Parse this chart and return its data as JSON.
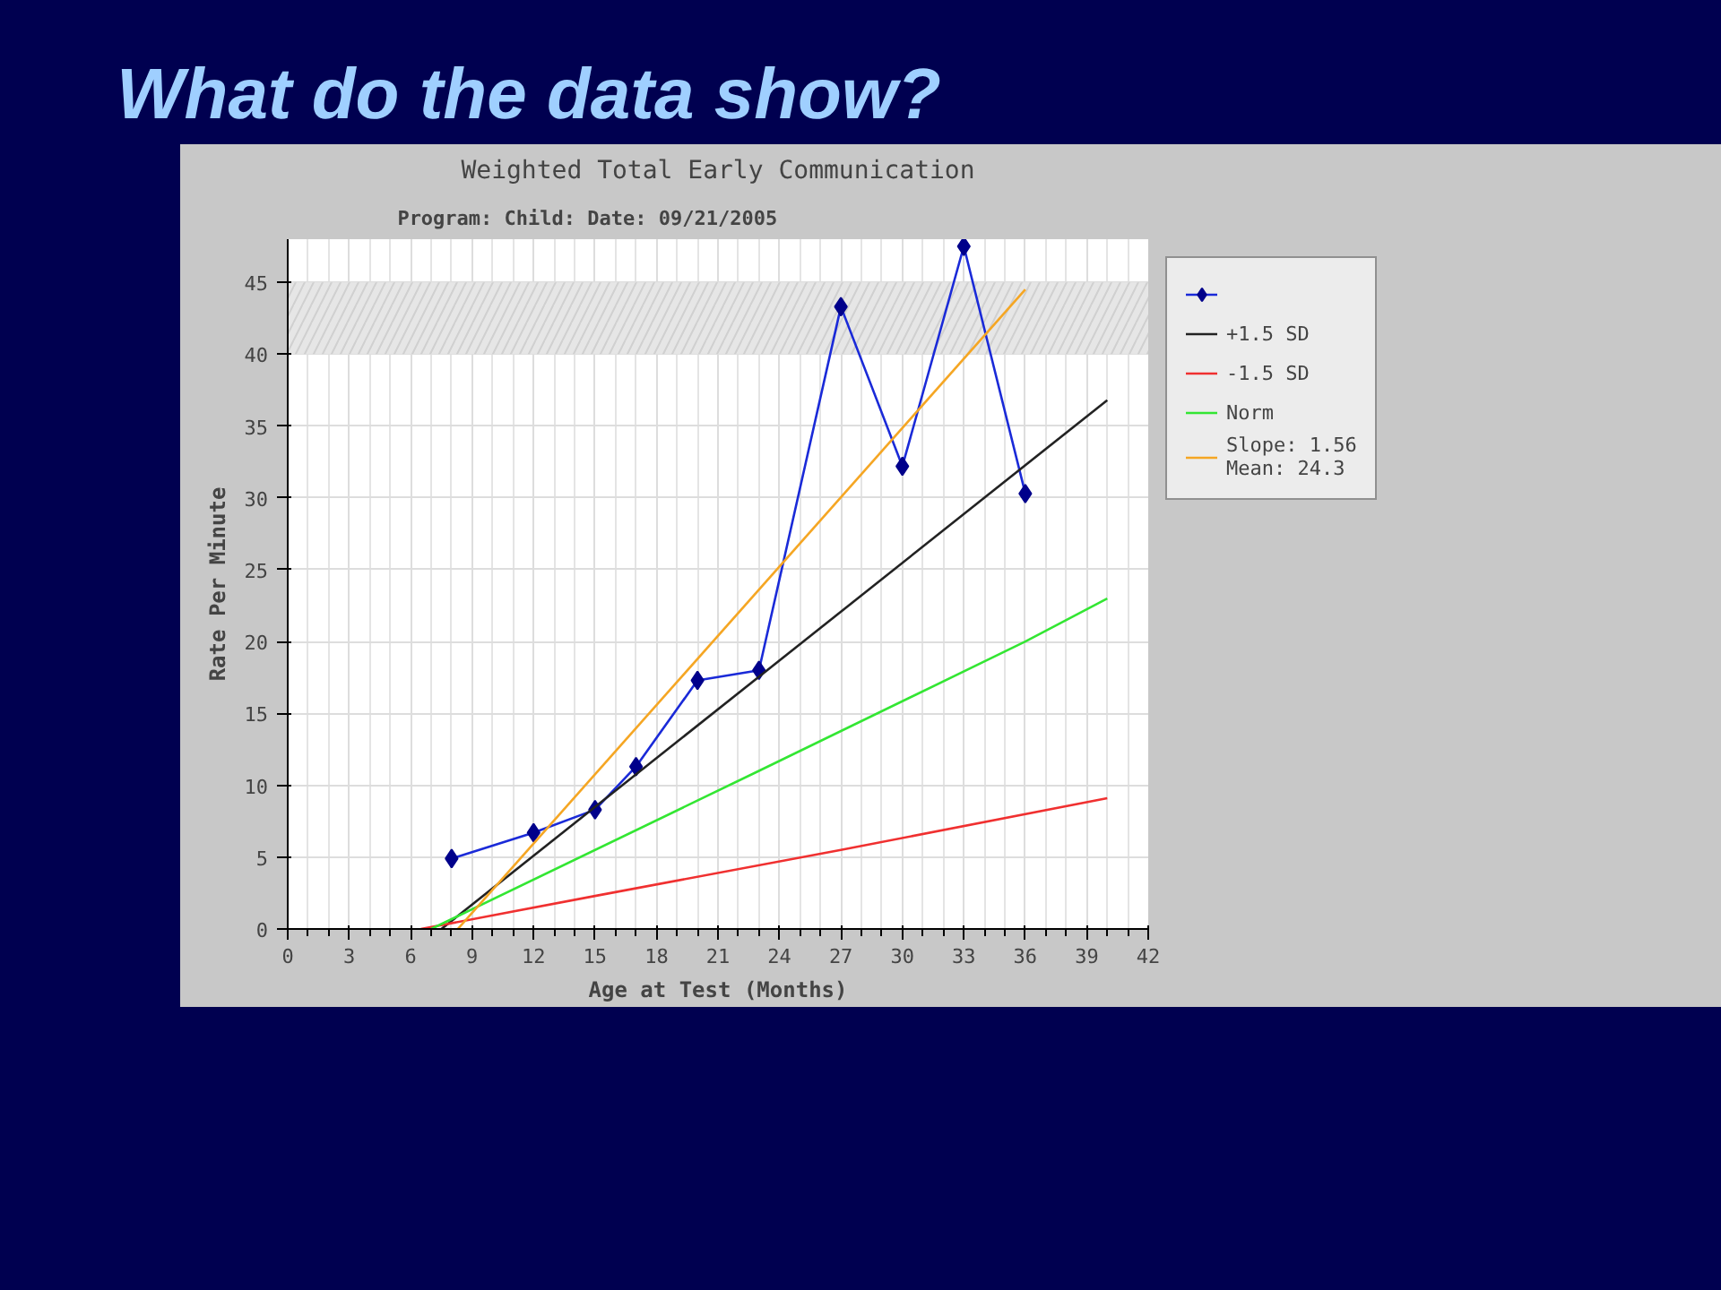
{
  "chart_data": {
    "type": "line",
    "title": "Weighted Total Early Communication",
    "subtitle": "Program:     Child:                   Date: 09/21/2005",
    "annotations": [
      "What do the data show?"
    ],
    "xlabel": "Age at Test (Months)",
    "ylabel": "Rate Per Minute",
    "xlim": [
      0,
      42
    ],
    "xticks": [
      0,
      3,
      6,
      9,
      12,
      15,
      18,
      21,
      24,
      27,
      30,
      33,
      36,
      39,
      42
    ],
    "ylim": [
      0,
      48
    ],
    "yticks": [
      0,
      5,
      10,
      15,
      20,
      25,
      30,
      35,
      40,
      45
    ],
    "grid": true,
    "legend": "right",
    "line_style": "solid",
    "bands": [
      {
        "axis": "y",
        "from": 40,
        "to": 45,
        "color": "#e6e6e6"
      }
    ],
    "series": [
      {
        "color": "#1a2ad8",
        "marker": "diamond",
        "x": [
          8,
          12,
          15,
          17,
          20,
          23,
          27,
          30,
          33,
          36
        ],
        "values": [
          4.9,
          6.7,
          8.3,
          11.3,
          17.3,
          18,
          43.3,
          32.2,
          47.5,
          30.3
        ]
      },
      {
        "name": "+1.5 SD",
        "color": "#222222",
        "marker": "none",
        "x": [
          7.5,
          40
        ],
        "values": [
          0,
          36.8
        ]
      },
      {
        "name": "-1.5 SD",
        "color": "#f03030",
        "marker": "none",
        "x": [
          6.5,
          15,
          27,
          40
        ],
        "values": [
          0,
          2.3,
          5.5,
          9.1
        ]
      },
      {
        "name": "Norm",
        "color": "#33e633",
        "marker": "none",
        "x": [
          7,
          23,
          36,
          40
        ],
        "values": [
          0,
          11,
          20,
          23
        ]
      },
      {
        "name": "Slope: 1.56\nMean: 24.3",
        "color": "#f5a623",
        "marker": "none",
        "x": [
          8.3,
          36
        ],
        "values": [
          0,
          44.5
        ]
      }
    ]
  }
}
